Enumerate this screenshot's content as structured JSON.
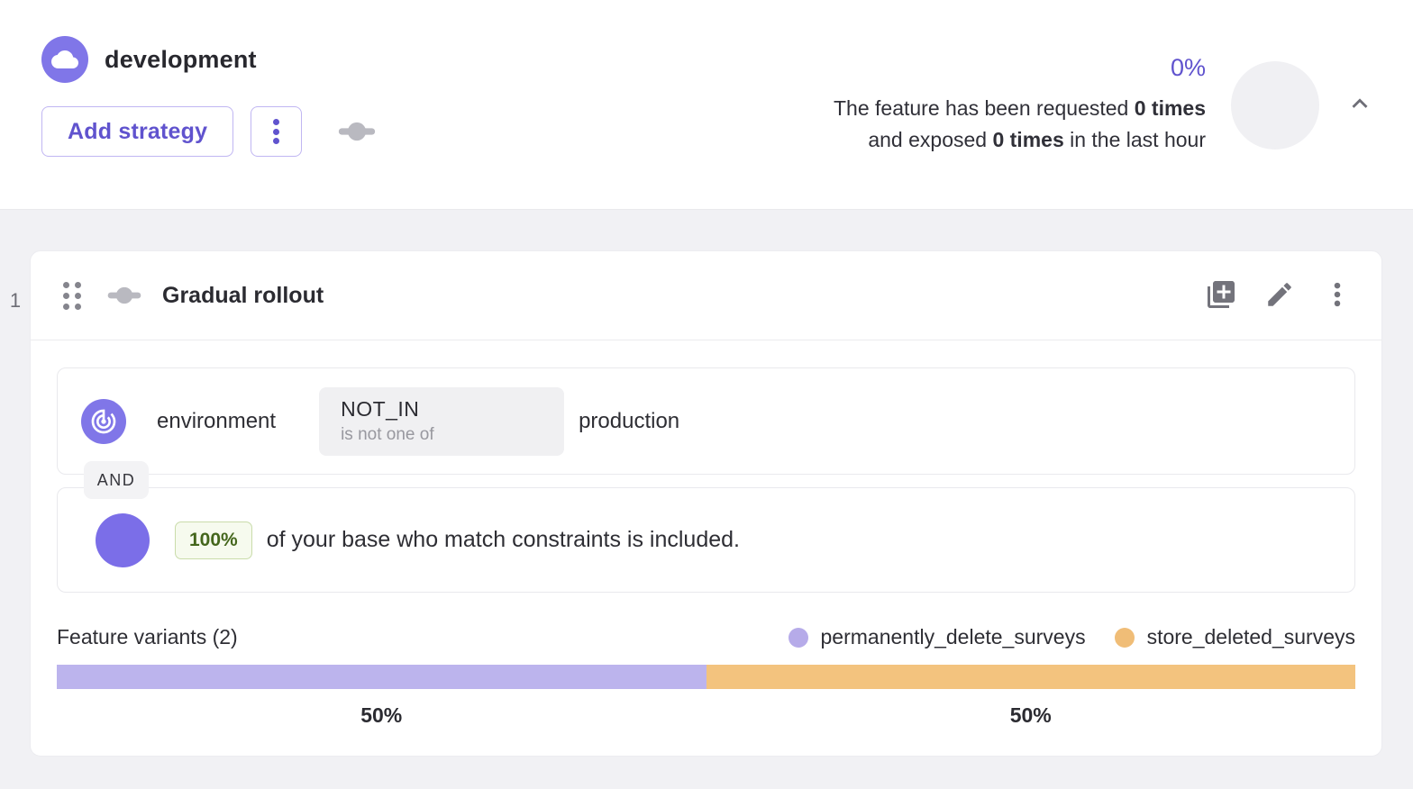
{
  "colors": {
    "primary_purple": "#6053ce",
    "icon_circle_purple": "#8076e8",
    "rollout_circle_purple": "#7b6ee8",
    "badge_green_text": "#44661c",
    "badge_green_bg": "#f6faee",
    "page_gray_bg": "#f1f1f4"
  },
  "header": {
    "environment": "development",
    "add_strategy": "Add strategy",
    "metrics": {
      "percentage": "0%",
      "line1_text": "The feature has been requested ",
      "line1_bold": "0 times",
      "line2_text1": "and exposed ",
      "line2_bold": "0 times",
      "line2_text2": " in the last hour"
    }
  },
  "strategy": {
    "index": "1",
    "title": "Gradual rollout",
    "constraint": {
      "field": "environment",
      "operator": "NOT_IN",
      "operator_text": "is not one of",
      "value": "production"
    },
    "conjunction": "AND",
    "rollout": {
      "percentage": "100%",
      "text": "of your base who match constraints is included."
    },
    "variants": {
      "label": "Feature variants (2)",
      "items": [
        {
          "name": "permanently_delete_surveys",
          "weight": 50,
          "weight_label": "50%",
          "dot_color": "#b6abe9",
          "bar_color": "#bcb4ed"
        },
        {
          "name": "store_deleted_surveys",
          "weight": 50,
          "weight_label": "50%",
          "dot_color": "#f0bd77",
          "bar_color": "#f3c37e"
        }
      ]
    }
  }
}
